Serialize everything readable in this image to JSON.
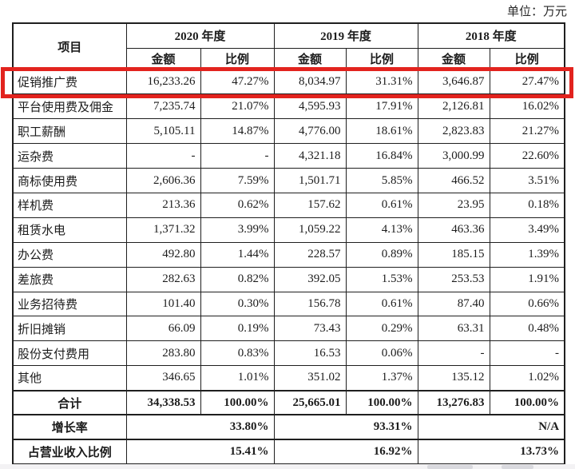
{
  "meta": {
    "unit_label": "单位：万元"
  },
  "colors": {
    "highlight_border": "#e2231e"
  },
  "table": {
    "item_header": "项目",
    "year_groups": [
      {
        "year": "2020 年度",
        "amount_label": "金额",
        "ratio_label": "比例"
      },
      {
        "year": "2019 年度",
        "amount_label": "金额",
        "ratio_label": "比例"
      },
      {
        "year": "2018 年度",
        "amount_label": "金额",
        "ratio_label": "比例"
      }
    ],
    "rows": [
      {
        "label": "促销推广费",
        "values": [
          "16,233.26",
          "47.27%",
          "8,034.97",
          "31.31%",
          "3,646.87",
          "27.47%"
        ],
        "highlight": true
      },
      {
        "label": "平台使用费及佣金",
        "values": [
          "7,235.74",
          "21.07%",
          "4,595.93",
          "17.91%",
          "2,126.81",
          "16.02%"
        ]
      },
      {
        "label": "职工薪酬",
        "values": [
          "5,105.11",
          "14.87%",
          "4,776.00",
          "18.61%",
          "2,823.83",
          "21.27%"
        ]
      },
      {
        "label": "运杂费",
        "values": [
          "-",
          "-",
          "4,321.18",
          "16.84%",
          "3,000.99",
          "22.60%"
        ]
      },
      {
        "label": "商标使用费",
        "values": [
          "2,606.36",
          "7.59%",
          "1,501.71",
          "5.85%",
          "466.52",
          "3.51%"
        ]
      },
      {
        "label": "样机费",
        "values": [
          "213.36",
          "0.62%",
          "157.62",
          "0.61%",
          "23.95",
          "0.18%"
        ]
      },
      {
        "label": "租赁水电",
        "values": [
          "1,371.32",
          "3.99%",
          "1,059.22",
          "4.13%",
          "463.36",
          "3.49%"
        ]
      },
      {
        "label": "办公费",
        "values": [
          "492.80",
          "1.44%",
          "228.57",
          "0.89%",
          "185.15",
          "1.39%"
        ]
      },
      {
        "label": "差旅费",
        "values": [
          "282.63",
          "0.82%",
          "392.05",
          "1.53%",
          "253.53",
          "1.91%"
        ]
      },
      {
        "label": "业务招待费",
        "values": [
          "101.40",
          "0.30%",
          "156.78",
          "0.61%",
          "87.40",
          "0.66%"
        ]
      },
      {
        "label": "折旧摊销",
        "values": [
          "66.09",
          "0.19%",
          "73.43",
          "0.29%",
          "63.31",
          "0.48%"
        ]
      },
      {
        "label": "股份支付费用",
        "values": [
          "283.80",
          "0.83%",
          "16.53",
          "0.06%",
          "-",
          "-"
        ]
      },
      {
        "label": "其他",
        "values": [
          "346.65",
          "1.01%",
          "351.02",
          "1.37%",
          "135.12",
          "1.02%"
        ]
      }
    ],
    "total_row": {
      "label": "合计",
      "values": [
        "34,338.53",
        "100.00%",
        "25,665.01",
        "100.00%",
        "13,276.83",
        "100.00%"
      ]
    },
    "growth_row": {
      "label": "增长率",
      "values": [
        "33.80%",
        "93.31%",
        "N/A"
      ]
    },
    "revenue_ratio_row": {
      "label": "占营业收入比例",
      "values": [
        "15.41%",
        "16.92%",
        "13.73%"
      ]
    }
  }
}
